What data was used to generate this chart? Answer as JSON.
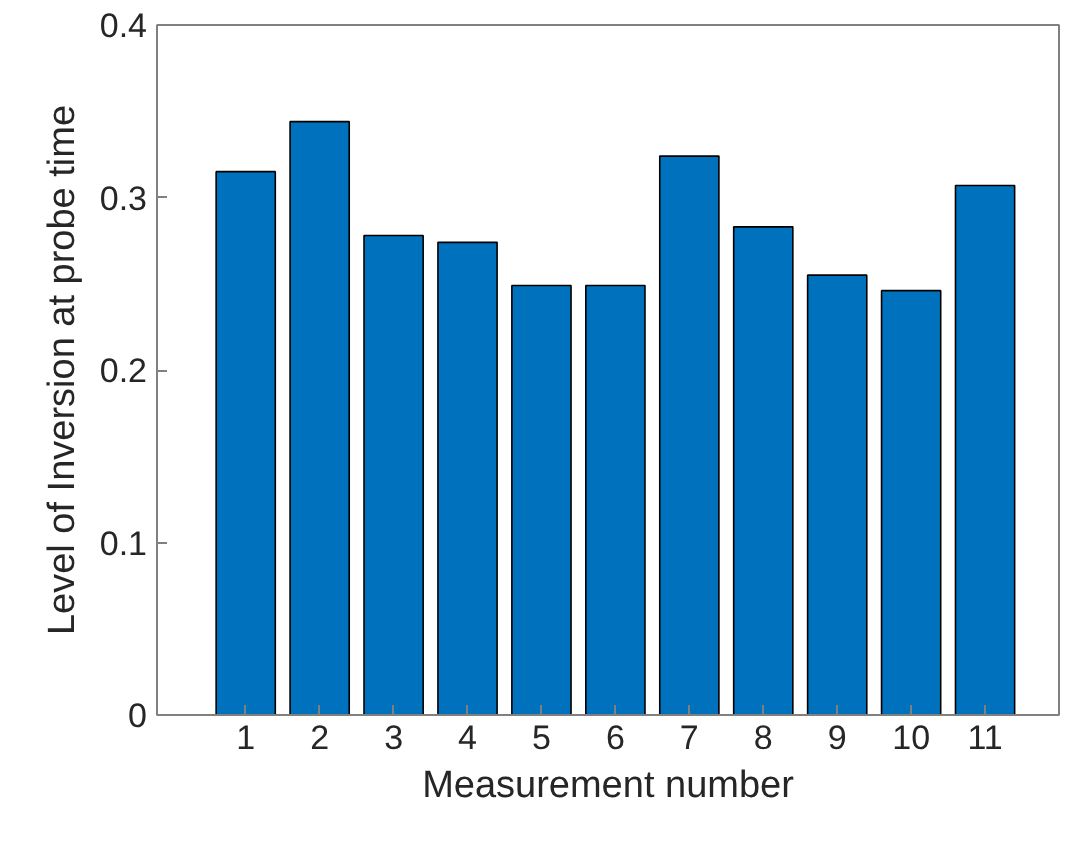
{
  "chart_data": {
    "type": "bar",
    "xlabel": "Measurement number",
    "ylabel": "Level of Inversion at probe time",
    "x": [
      1,
      2,
      3,
      4,
      5,
      6,
      7,
      8,
      9,
      10,
      11
    ],
    "values": [
      0.315,
      0.344,
      0.278,
      0.274,
      0.249,
      0.249,
      0.324,
      0.283,
      0.255,
      0.246,
      0.307
    ],
    "color": "#0072bd",
    "xlim": [
      -0.2,
      12
    ],
    "xticks": [
      1,
      2,
      3,
      4,
      5,
      6,
      7,
      8,
      9,
      10,
      11
    ],
    "ylim": [
      0,
      0.4
    ],
    "yticks": [
      0,
      0.1,
      0.2,
      0.3,
      0.4
    ],
    "grid": false
  }
}
